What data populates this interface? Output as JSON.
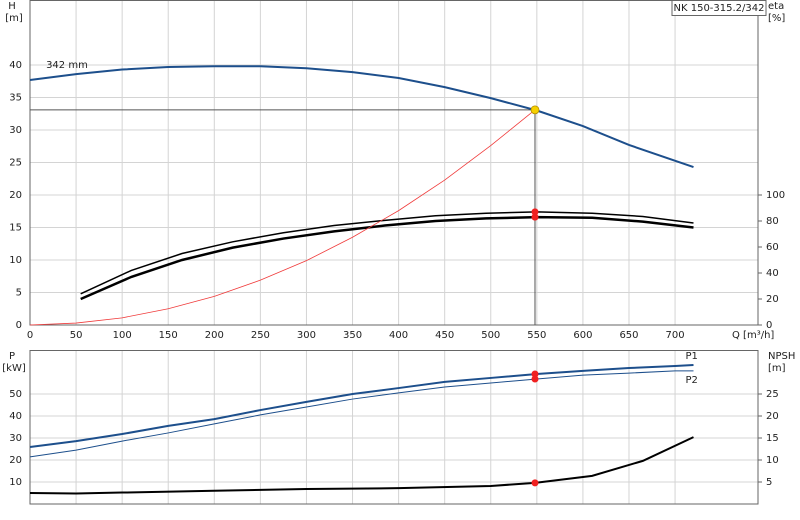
{
  "chart_data": [
    {
      "type": "line",
      "title": "NK 150-315.2/342",
      "y_label": "H",
      "y_unit": "[m]",
      "y2_label": "eta",
      "y2_unit": "[%]",
      "x_label": "Q [m³/h]",
      "xlim": [
        0,
        790
      ],
      "xticks": [
        0,
        50,
        100,
        150,
        200,
        250,
        300,
        350,
        400,
        450,
        500,
        550,
        600,
        650,
        700
      ],
      "ylim": [
        0,
        50
      ],
      "yticks": [
        0,
        5,
        10,
        15,
        20,
        25,
        30,
        35,
        40
      ],
      "y2lim": [
        0,
        250
      ],
      "y2ticks": [
        0,
        20,
        40,
        60,
        80,
        100
      ],
      "grid": true,
      "xtick_labels": true,
      "series": [
        {
          "name": "342 mm",
          "color": "#1d4f8c",
          "width": 2,
          "x": [
            0,
            50,
            100,
            150,
            200,
            250,
            300,
            350,
            400,
            450,
            500,
            550,
            600,
            650,
            720
          ],
          "values": [
            37.7,
            38.6,
            39.3,
            39.7,
            39.8,
            39.8,
            39.5,
            38.9,
            38.0,
            36.6,
            34.9,
            33.0,
            30.6,
            27.7,
            24.3
          ]
        },
        {
          "color": "#000000",
          "width": 1.5,
          "axis": "y2",
          "x": [
            55,
            110,
            165,
            220,
            275,
            330,
            385,
            440,
            495,
            550,
            610,
            665,
            720
          ],
          "values": [
            24,
            42,
            55,
            64,
            71,
            76.5,
            80.5,
            84,
            86,
            87,
            86,
            83.5,
            78.5
          ]
        },
        {
          "color": "#000000",
          "width": 2.5,
          "axis": "y2",
          "x": [
            55,
            110,
            165,
            220,
            275,
            330,
            385,
            440,
            495,
            550,
            610,
            665,
            720
          ],
          "values": [
            20,
            37,
            50,
            59.5,
            66.5,
            72,
            76.5,
            80,
            82,
            83,
            82.5,
            79.5,
            75
          ]
        },
        {
          "color": "#f03a3a",
          "width": 0.8,
          "x": [
            0,
            50,
            100,
            150,
            200,
            250,
            300,
            350,
            400,
            450,
            500,
            548
          ],
          "values": [
            0,
            0.3,
            1.1,
            2.5,
            4.4,
            6.9,
            9.9,
            13.5,
            17.6,
            22.3,
            27.6,
            33.1
          ]
        }
      ],
      "duty_point": {
        "x": 548,
        "y": 33.1,
        "color": "#f5d000"
      },
      "markers": [
        {
          "x": 548,
          "y": 87,
          "axis": "y2",
          "color": "#f02020"
        },
        {
          "x": 548,
          "y": 83,
          "axis": "y2",
          "color": "#f02020"
        }
      ]
    },
    {
      "type": "line",
      "y_label": "P",
      "y_unit": "[kW]",
      "y2_label": "NPSH",
      "y2_unit": "[m]",
      "xlim": [
        0,
        790
      ],
      "xticks": [
        0,
        50,
        100,
        150,
        200,
        250,
        300,
        350,
        400,
        450,
        500,
        550,
        600,
        650,
        700
      ],
      "ylim": [
        0,
        70
      ],
      "yticks": [
        10,
        20,
        30,
        40,
        50
      ],
      "y2lim": [
        0,
        35
      ],
      "y2ticks": [
        5,
        10,
        15,
        20,
        25
      ],
      "grid": true,
      "xtick_labels": false,
      "series": [
        {
          "name": "P1",
          "color": "#1d4f8c",
          "width": 2,
          "x": [
            0,
            50,
            100,
            150,
            200,
            250,
            300,
            350,
            400,
            450,
            500,
            550,
            600,
            650,
            700,
            720
          ],
          "values": [
            25.9,
            28.6,
            31.8,
            35.5,
            38.6,
            42.7,
            46.4,
            50,
            52.7,
            55.5,
            57.3,
            59.1,
            60.5,
            61.8,
            62.7,
            63.2
          ]
        },
        {
          "name": "P2",
          "color": "#1d4f8c",
          "width": 1,
          "x": [
            0,
            50,
            100,
            150,
            200,
            250,
            300,
            350,
            400,
            450,
            500,
            550,
            600,
            650,
            700,
            720
          ],
          "values": [
            21.4,
            24.5,
            28.6,
            32.3,
            36.4,
            40.5,
            44.1,
            47.7,
            50.5,
            53.2,
            55,
            56.8,
            58.6,
            59.5,
            60.5,
            60.5
          ]
        },
        {
          "color": "#000000",
          "width": 2,
          "axis": "y2",
          "x": [
            0,
            50,
            100,
            200,
            300,
            400,
            500,
            548,
            610,
            665,
            720
          ],
          "values": [
            2.5,
            2.4,
            2.6,
            3.0,
            3.4,
            3.6,
            4.1,
            4.8,
            6.4,
            9.8,
            15.2
          ]
        }
      ],
      "markers": [
        {
          "x": 548,
          "y": 59.1,
          "color": "#f02020"
        },
        {
          "x": 548,
          "y": 56.8,
          "color": "#f02020"
        },
        {
          "x": 548,
          "y": 4.8,
          "axis": "y2",
          "color": "#f02020"
        }
      ]
    }
  ]
}
